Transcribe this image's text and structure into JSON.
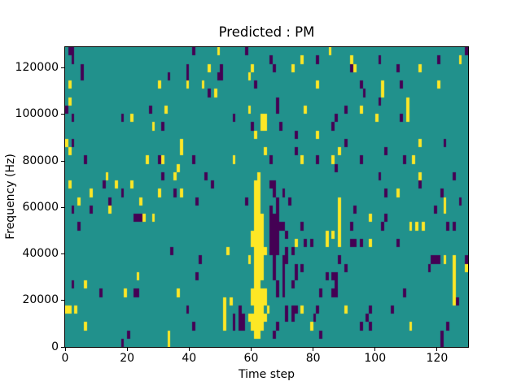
{
  "chart_data": {
    "type": "heatmap",
    "title": "Predicted : PM",
    "xlabel": "Time step",
    "ylabel": "Frequency (Hz)",
    "x_ticks": [
      0,
      20,
      40,
      60,
      80,
      100,
      120
    ],
    "y_ticks": [
      0,
      20000,
      40000,
      60000,
      80000,
      100000,
      120000
    ],
    "xlim": [
      0,
      130
    ],
    "ylim": [
      0,
      129000
    ],
    "grid_cols": 130,
    "grid_rows": 36,
    "legend": "none",
    "grid": false,
    "colors": {
      "mid": "#21918c",
      "high": "#fde725",
      "low": "#440154",
      "spine": "#000000",
      "figure_bg": "#ffffff"
    },
    "note_rows": "row 0 = top of plot (highest frequency bin), row 35 = bottom (0 Hz)",
    "yellow_cells": [
      [
        49,
        0
      ],
      [
        85,
        0
      ],
      [
        76,
        1
      ],
      [
        92,
        1
      ],
      [
        127,
        1
      ],
      [
        46,
        2
      ],
      [
        60,
        2
      ],
      [
        73,
        2
      ],
      [
        93,
        2
      ],
      [
        114,
        2
      ],
      [
        59,
        3
      ],
      [
        1,
        4
      ],
      [
        30,
        4
      ],
      [
        39,
        4
      ],
      [
        44,
        4
      ],
      [
        81,
        4
      ],
      [
        102,
        4
      ],
      [
        120,
        4
      ],
      [
        48,
        5
      ],
      [
        102,
        5
      ],
      [
        1,
        6
      ],
      [
        110,
        6
      ],
      [
        32,
        7
      ],
      [
        59,
        7
      ],
      [
        77,
        7
      ],
      [
        95,
        7
      ],
      [
        110,
        7
      ],
      [
        21,
        8
      ],
      [
        63,
        8
      ],
      [
        64,
        8
      ],
      [
        100,
        8
      ],
      [
        110,
        8
      ],
      [
        28,
        9
      ],
      [
        63,
        9
      ],
      [
        64,
        9
      ],
      [
        61,
        10
      ],
      [
        81,
        10
      ],
      [
        0,
        11
      ],
      [
        37,
        11
      ],
      [
        114,
        11
      ],
      [
        1,
        12
      ],
      [
        37,
        12
      ],
      [
        64,
        12
      ],
      [
        88,
        12
      ],
      [
        26,
        13
      ],
      [
        31,
        13
      ],
      [
        54,
        13
      ],
      [
        76,
        13
      ],
      [
        86,
        13
      ],
      [
        112,
        13
      ],
      [
        36,
        14
      ],
      [
        13,
        15
      ],
      [
        35,
        15
      ],
      [
        114,
        15
      ],
      [
        62,
        15
      ],
      [
        1,
        16
      ],
      [
        16,
        16
      ],
      [
        21,
        16
      ],
      [
        61,
        16
      ],
      [
        62,
        16
      ],
      [
        8,
        17
      ],
      [
        30,
        17
      ],
      [
        37,
        17
      ],
      [
        107,
        17
      ],
      [
        61,
        17
      ],
      [
        62,
        17
      ],
      [
        4,
        18
      ],
      [
        24,
        18
      ],
      [
        88,
        18
      ],
      [
        122,
        18
      ],
      [
        61,
        18
      ],
      [
        62,
        18
      ],
      [
        14,
        19
      ],
      [
        88,
        19
      ],
      [
        122,
        19
      ],
      [
        61,
        19
      ],
      [
        62,
        19
      ],
      [
        25,
        20
      ],
      [
        28,
        20
      ],
      [
        88,
        20
      ],
      [
        98,
        20
      ],
      [
        61,
        20
      ],
      [
        62,
        20
      ],
      [
        63,
        20
      ],
      [
        88,
        21
      ],
      [
        111,
        21
      ],
      [
        113,
        21
      ],
      [
        115,
        21
      ],
      [
        61,
        21
      ],
      [
        62,
        21
      ],
      [
        63,
        21
      ],
      [
        84,
        22
      ],
      [
        86,
        22
      ],
      [
        88,
        22
      ],
      [
        60,
        22
      ],
      [
        61,
        22
      ],
      [
        62,
        22
      ],
      [
        63,
        22
      ],
      [
        74,
        23
      ],
      [
        84,
        23
      ],
      [
        88,
        23
      ],
      [
        98,
        23
      ],
      [
        60,
        23
      ],
      [
        61,
        23
      ],
      [
        62,
        23
      ],
      [
        63,
        23
      ],
      [
        52,
        24
      ],
      [
        61,
        24
      ],
      [
        62,
        24
      ],
      [
        63,
        24
      ],
      [
        64,
        24
      ],
      [
        59,
        25
      ],
      [
        122,
        25
      ],
      [
        125,
        25
      ],
      [
        61,
        25
      ],
      [
        62,
        25
      ],
      [
        63,
        25
      ],
      [
        125,
        26
      ],
      [
        129,
        26
      ],
      [
        61,
        26
      ],
      [
        62,
        26
      ],
      [
        63,
        26
      ],
      [
        23,
        27
      ],
      [
        125,
        27
      ],
      [
        61,
        27
      ],
      [
        62,
        27
      ],
      [
        63,
        27
      ],
      [
        6,
        28
      ],
      [
        125,
        28
      ],
      [
        61,
        28
      ],
      [
        62,
        28
      ],
      [
        19,
        29
      ],
      [
        36,
        29
      ],
      [
        125,
        29
      ],
      [
        60,
        29
      ],
      [
        61,
        29
      ],
      [
        62,
        29
      ],
      [
        63,
        29
      ],
      [
        64,
        29
      ],
      [
        51,
        30
      ],
      [
        53,
        30
      ],
      [
        125,
        30
      ],
      [
        60,
        30
      ],
      [
        61,
        30
      ],
      [
        62,
        30
      ],
      [
        63,
        30
      ],
      [
        64,
        30
      ],
      [
        0,
        31
      ],
      [
        1,
        31
      ],
      [
        3,
        31
      ],
      [
        51,
        31
      ],
      [
        65,
        31
      ],
      [
        76,
        31
      ],
      [
        90,
        31
      ],
      [
        61,
        31
      ],
      [
        62,
        31
      ],
      [
        63,
        31
      ],
      [
        51,
        32
      ],
      [
        59,
        32
      ],
      [
        60,
        32
      ],
      [
        61,
        32
      ],
      [
        62,
        32
      ],
      [
        63,
        32
      ],
      [
        64,
        32
      ],
      [
        6,
        33
      ],
      [
        51,
        33
      ],
      [
        79,
        33
      ],
      [
        111,
        33
      ],
      [
        60,
        33
      ],
      [
        61,
        33
      ],
      [
        62,
        33
      ],
      [
        63,
        33
      ],
      [
        33,
        34
      ],
      [
        61,
        34
      ],
      [
        62,
        34
      ],
      [
        33,
        35
      ]
    ],
    "purple_cells": [
      [
        1,
        0
      ],
      [
        2,
        0
      ],
      [
        41,
        0
      ],
      [
        58,
        0
      ],
      [
        129,
        0
      ],
      [
        2,
        1
      ],
      [
        66,
        1
      ],
      [
        81,
        1
      ],
      [
        101,
        1
      ],
      [
        120,
        1
      ],
      [
        5,
        2
      ],
      [
        39,
        2
      ],
      [
        50,
        2
      ],
      [
        67,
        2
      ],
      [
        92,
        2
      ],
      [
        107,
        2
      ],
      [
        5,
        3
      ],
      [
        33,
        3
      ],
      [
        39,
        3
      ],
      [
        49,
        3
      ],
      [
        50,
        3
      ],
      [
        61,
        4
      ],
      [
        95,
        4
      ],
      [
        108,
        4
      ],
      [
        46,
        5
      ],
      [
        96,
        5
      ],
      [
        68,
        6
      ],
      [
        101,
        6
      ],
      [
        0,
        7
      ],
      [
        27,
        7
      ],
      [
        68,
        7
      ],
      [
        90,
        7
      ],
      [
        2,
        8
      ],
      [
        18,
        8
      ],
      [
        54,
        8
      ],
      [
        87,
        8
      ],
      [
        108,
        8
      ],
      [
        31,
        9
      ],
      [
        60,
        9
      ],
      [
        69,
        9
      ],
      [
        86,
        9
      ],
      [
        74,
        10
      ],
      [
        2,
        11
      ],
      [
        90,
        11
      ],
      [
        122,
        11
      ],
      [
        74,
        12
      ],
      [
        103,
        12
      ],
      [
        6,
        13
      ],
      [
        30,
        13
      ],
      [
        41,
        13
      ],
      [
        66,
        13
      ],
      [
        81,
        13
      ],
      [
        95,
        13
      ],
      [
        109,
        13
      ],
      [
        87,
        14
      ],
      [
        31,
        15
      ],
      [
        45,
        15
      ],
      [
        101,
        15
      ],
      [
        125,
        15
      ],
      [
        12,
        16
      ],
      [
        47,
        16
      ],
      [
        66,
        16
      ],
      [
        67,
        16
      ],
      [
        114,
        16
      ],
      [
        18,
        17
      ],
      [
        35,
        17
      ],
      [
        67,
        17
      ],
      [
        70,
        17
      ],
      [
        103,
        17
      ],
      [
        121,
        17
      ],
      [
        14,
        18
      ],
      [
        42,
        18
      ],
      [
        58,
        18
      ],
      [
        68,
        18
      ],
      [
        72,
        18
      ],
      [
        127,
        18
      ],
      [
        2,
        19
      ],
      [
        8,
        19
      ],
      [
        66,
        19
      ],
      [
        68,
        19
      ],
      [
        93,
        19
      ],
      [
        119,
        19
      ],
      [
        22,
        20
      ],
      [
        23,
        20
      ],
      [
        24,
        20
      ],
      [
        66,
        20
      ],
      [
        67,
        20
      ],
      [
        68,
        20
      ],
      [
        103,
        20
      ],
      [
        4,
        21
      ],
      [
        66,
        21
      ],
      [
        67,
        21
      ],
      [
        68,
        21
      ],
      [
        69,
        21
      ],
      [
        70,
        21
      ],
      [
        76,
        21
      ],
      [
        92,
        21
      ],
      [
        102,
        21
      ],
      [
        123,
        21
      ],
      [
        125,
        21
      ],
      [
        66,
        22
      ],
      [
        67,
        22
      ],
      [
        68,
        22
      ],
      [
        71,
        22
      ],
      [
        66,
        23
      ],
      [
        67,
        23
      ],
      [
        68,
        23
      ],
      [
        77,
        23
      ],
      [
        79,
        23
      ],
      [
        92,
        23
      ],
      [
        93,
        23
      ],
      [
        95,
        23
      ],
      [
        107,
        23
      ],
      [
        34,
        24
      ],
      [
        66,
        24
      ],
      [
        67,
        24
      ],
      [
        68,
        24
      ],
      [
        71,
        24
      ],
      [
        73,
        24
      ],
      [
        43,
        25
      ],
      [
        67,
        25
      ],
      [
        70,
        25
      ],
      [
        71,
        25
      ],
      [
        88,
        25
      ],
      [
        118,
        25
      ],
      [
        119,
        25
      ],
      [
        120,
        25
      ],
      [
        129,
        25
      ],
      [
        67,
        26
      ],
      [
        70,
        26
      ],
      [
        74,
        26
      ],
      [
        76,
        26
      ],
      [
        90,
        26
      ],
      [
        117,
        26
      ],
      [
        42,
        27
      ],
      [
        67,
        27
      ],
      [
        70,
        27
      ],
      [
        74,
        27
      ],
      [
        84,
        27
      ],
      [
        86,
        27
      ],
      [
        87,
        27
      ],
      [
        2,
        28
      ],
      [
        68,
        28
      ],
      [
        70,
        28
      ],
      [
        73,
        28
      ],
      [
        87,
        28
      ],
      [
        11,
        29
      ],
      [
        22,
        29
      ],
      [
        23,
        29
      ],
      [
        68,
        29
      ],
      [
        70,
        29
      ],
      [
        82,
        29
      ],
      [
        86,
        29
      ],
      [
        87,
        29
      ],
      [
        109,
        29
      ],
      [
        126,
        30
      ],
      [
        39,
        31
      ],
      [
        56,
        31
      ],
      [
        71,
        31
      ],
      [
        73,
        31
      ],
      [
        74,
        31
      ],
      [
        81,
        31
      ],
      [
        98,
        31
      ],
      [
        105,
        31
      ],
      [
        54,
        32
      ],
      [
        56,
        32
      ],
      [
        57,
        32
      ],
      [
        71,
        32
      ],
      [
        73,
        32
      ],
      [
        80,
        32
      ],
      [
        97,
        32
      ],
      [
        41,
        33
      ],
      [
        54,
        33
      ],
      [
        56,
        33
      ],
      [
        57,
        33
      ],
      [
        68,
        33
      ],
      [
        95,
        33
      ],
      [
        98,
        33
      ],
      [
        123,
        33
      ],
      [
        20,
        34
      ],
      [
        67,
        34
      ],
      [
        82,
        34
      ],
      [
        121,
        34
      ],
      [
        18,
        35
      ],
      [
        121,
        35
      ]
    ]
  }
}
